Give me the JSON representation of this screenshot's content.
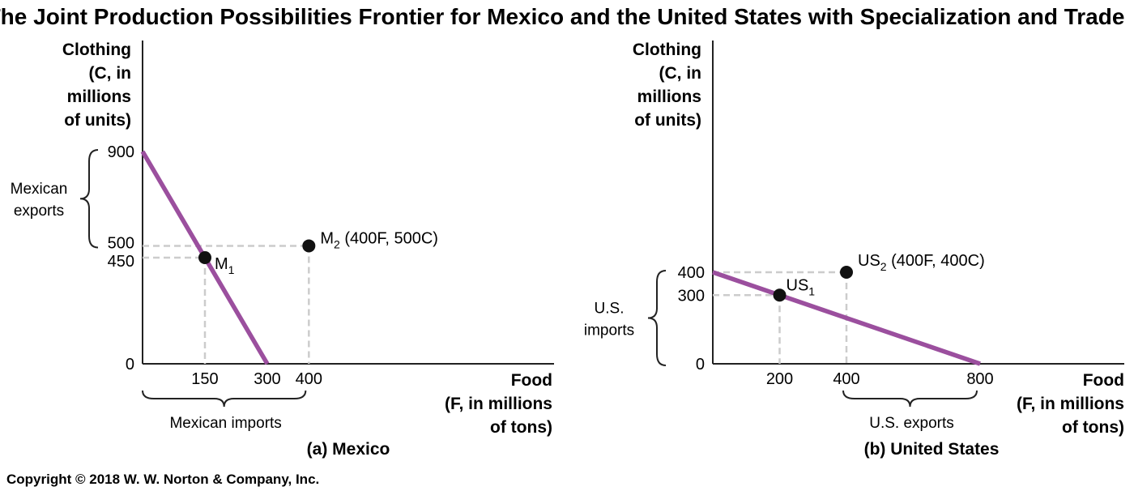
{
  "title": "The Joint Production Possibilities Frontier for Mexico and the United States with Specialization and Trade",
  "copyright": "Copyright © 2018 W. W. Norton & Company, Inc.",
  "colors": {
    "frontier": "#9b4f9e",
    "guide": "#cccccc",
    "axis": "#222222",
    "point": "#111111"
  },
  "chart_data": [
    {
      "type": "line",
      "panel_label": "(a) Mexico",
      "ylabel_lines": [
        "Clothing",
        "(C, in",
        "millions",
        "of units)"
      ],
      "xlabel_lines": [
        "Food",
        "(F, in millions",
        "of tons)"
      ],
      "x_ticks": [
        "150",
        "300",
        "400"
      ],
      "y_ticks": [
        "0",
        "450",
        "500",
        "900"
      ],
      "frontier": {
        "x": [
          0,
          300
        ],
        "y": [
          900,
          0
        ]
      },
      "points": [
        {
          "name": "M",
          "sub": "1",
          "suffix": "",
          "x": 150,
          "y": 450
        },
        {
          "name": "M",
          "sub": "2",
          "suffix": " (400F, 500C)",
          "x": 400,
          "y": 500
        }
      ],
      "brackets": {
        "vertical": {
          "label_lines": [
            "Mexican",
            "exports"
          ],
          "from": 500,
          "to": 900
        },
        "horizontal": {
          "label": "Mexican imports",
          "from": 0,
          "to": 400
        }
      }
    },
    {
      "type": "line",
      "panel_label": "(b) United States",
      "ylabel_lines": [
        "Clothing",
        "(C, in",
        "millions",
        "of units)"
      ],
      "xlabel_lines": [
        "Food",
        "(F, in millions",
        "of tons)"
      ],
      "x_ticks": [
        "200",
        "400",
        "800"
      ],
      "y_ticks": [
        "0",
        "300",
        "400"
      ],
      "frontier": {
        "x": [
          0,
          800
        ],
        "y": [
          400,
          0
        ]
      },
      "points": [
        {
          "name": "US",
          "sub": "1",
          "suffix": "",
          "x": 200,
          "y": 300
        },
        {
          "name": "US",
          "sub": "2",
          "suffix": " (400F, 400C)",
          "x": 400,
          "y": 400
        }
      ],
      "brackets": {
        "vertical": {
          "label_lines": [
            "U.S.",
            "imports"
          ],
          "from": 0,
          "to": 400
        },
        "horizontal": {
          "label": "U.S. exports",
          "from": 400,
          "to": 800
        }
      }
    }
  ]
}
